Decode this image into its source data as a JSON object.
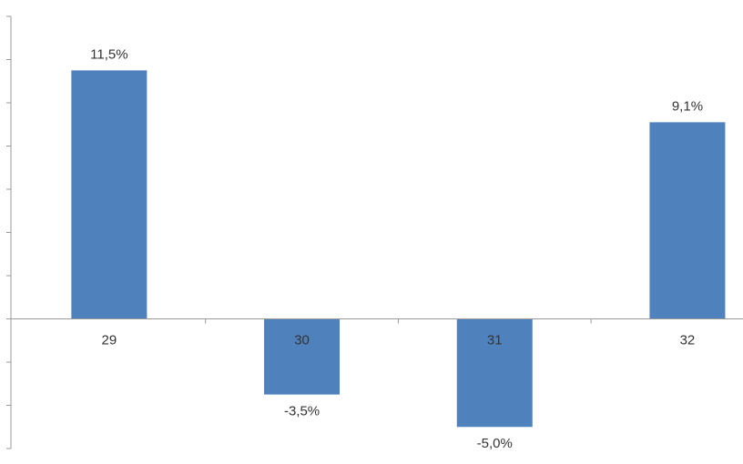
{
  "chart_data": {
    "type": "bar",
    "categories": [
      "29",
      "30",
      "31",
      "32"
    ],
    "values": [
      11.5,
      -3.5,
      -5.0,
      9.1
    ],
    "value_labels": [
      "11,5%",
      "-3,5%",
      "-5,0%",
      "9,1%"
    ],
    "color": "#4f81bd",
    "ylim": [
      -6,
      14
    ],
    "yticks": [
      -6,
      -4,
      -2,
      0,
      2,
      4,
      6,
      8,
      10,
      12,
      14
    ]
  }
}
